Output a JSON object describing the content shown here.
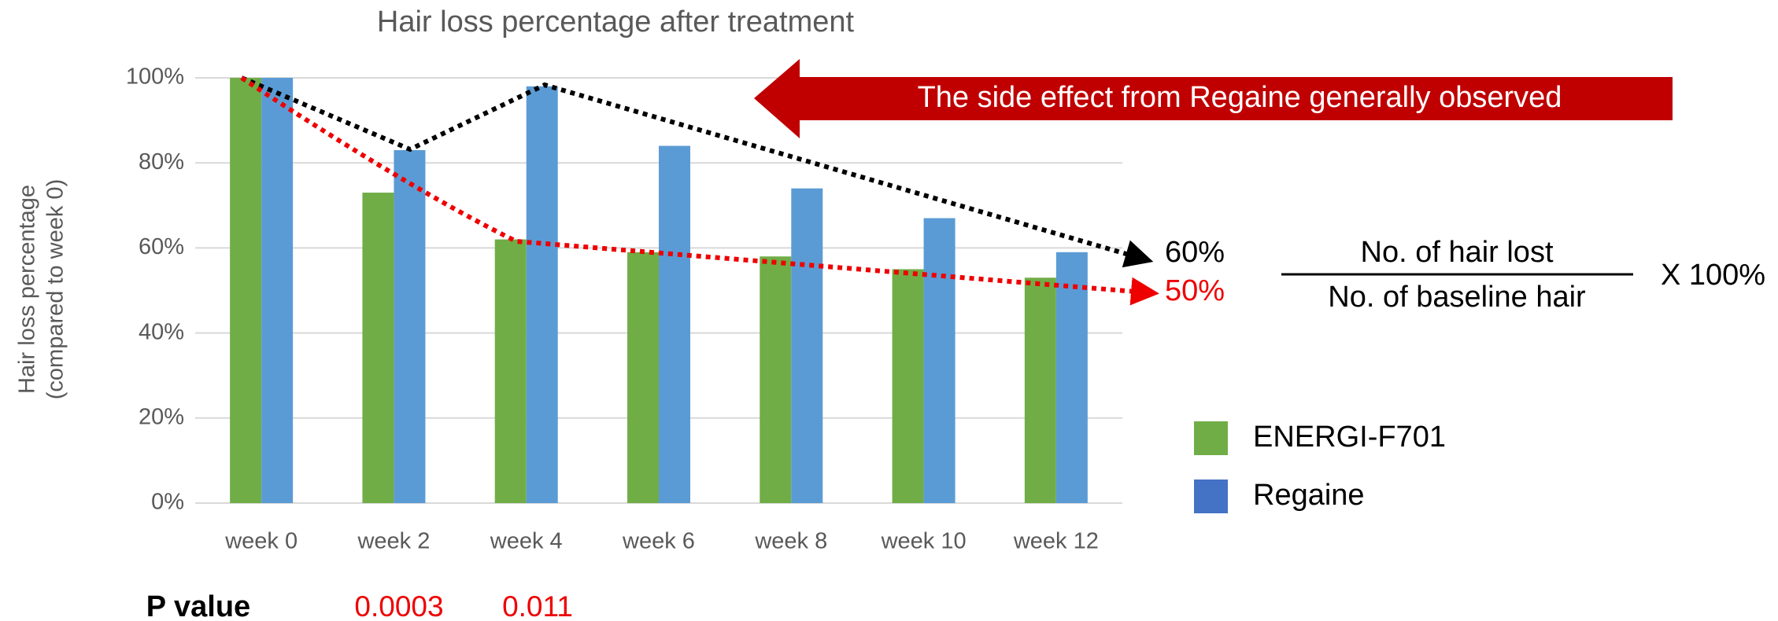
{
  "chart_data": {
    "type": "bar",
    "title": "Hair loss percentage after treatment",
    "y_label": [
      "Hair loss percentage",
      "(compared to week 0)"
    ],
    "categories": [
      "week 0",
      "week 2",
      "week 4",
      "week 6",
      "week 8",
      "week 10",
      "week 12"
    ],
    "series": [
      {
        "name": "ENERGI-F701",
        "color": "#70ad47",
        "values": [
          100,
          73,
          62,
          59,
          58,
          55,
          53
        ]
      },
      {
        "name": "Regaine",
        "color": "#5b9bd5",
        "values": [
          100,
          83,
          98,
          84,
          74,
          67,
          59
        ]
      }
    ],
    "legend_color": [
      "#70ad47",
      "#4472c4"
    ],
    "ylim": [
      0,
      100
    ],
    "yticks": [
      {
        "value": 0,
        "label": "0%"
      },
      {
        "value": 20,
        "label": "20%"
      },
      {
        "value": 40,
        "label": "40%"
      },
      {
        "value": 60,
        "label": "60%"
      },
      {
        "value": 80,
        "label": "80%"
      },
      {
        "value": 100,
        "label": "100%"
      }
    ],
    "grid": true,
    "legend": "right",
    "annotations": {
      "banner": "The side effect from Regaine generally observed",
      "regaine_end": "60%",
      "energi_end": "50%",
      "formula_numerator": "No. of hair lost",
      "formula_denominator": "No. of baseline hair",
      "formula_factor": "X 100%",
      "p_value_label": "P value",
      "p_values": [
        "0.0003",
        "0.011"
      ]
    }
  }
}
